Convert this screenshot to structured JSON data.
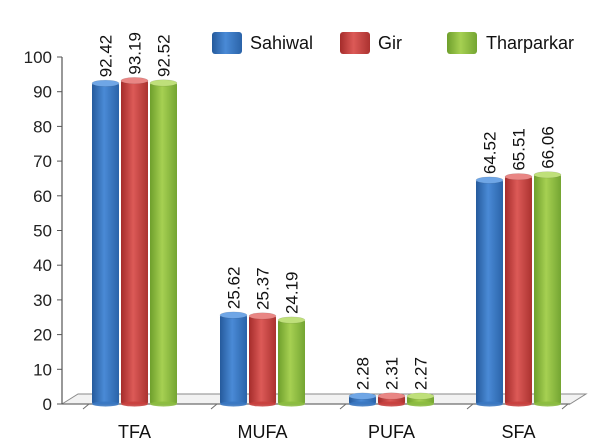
{
  "chart_data": {
    "type": "bar",
    "categories": [
      "TFA",
      "MUFA",
      "PUFA",
      "SFA"
    ],
    "series": [
      {
        "name": "Sahiwal",
        "values": [
          92.42,
          25.62,
          2.28,
          64.52
        ],
        "labels": [
          "92.42",
          "25.62",
          "2.28",
          "64.52"
        ],
        "color": "#3a78c2"
      },
      {
        "name": "Gir",
        "values": [
          93.19,
          25.37,
          2.31,
          65.51
        ],
        "labels": [
          "93.19",
          "25.37",
          "2.31",
          "65.51"
        ],
        "color": "#c9403e"
      },
      {
        "name": "Tharparkar",
        "values": [
          92.52,
          24.19,
          2.27,
          66.06
        ],
        "labels": [
          "92.52",
          "24.19",
          "2.27",
          "66.06"
        ],
        "color": "#8cbd3f"
      }
    ],
    "ylim": [
      0,
      100
    ],
    "yticks": [
      "0",
      "10",
      "20",
      "30",
      "40",
      "50",
      "60",
      "70",
      "80",
      "90",
      "100"
    ],
    "legend_position": "top-right",
    "grid": false
  }
}
